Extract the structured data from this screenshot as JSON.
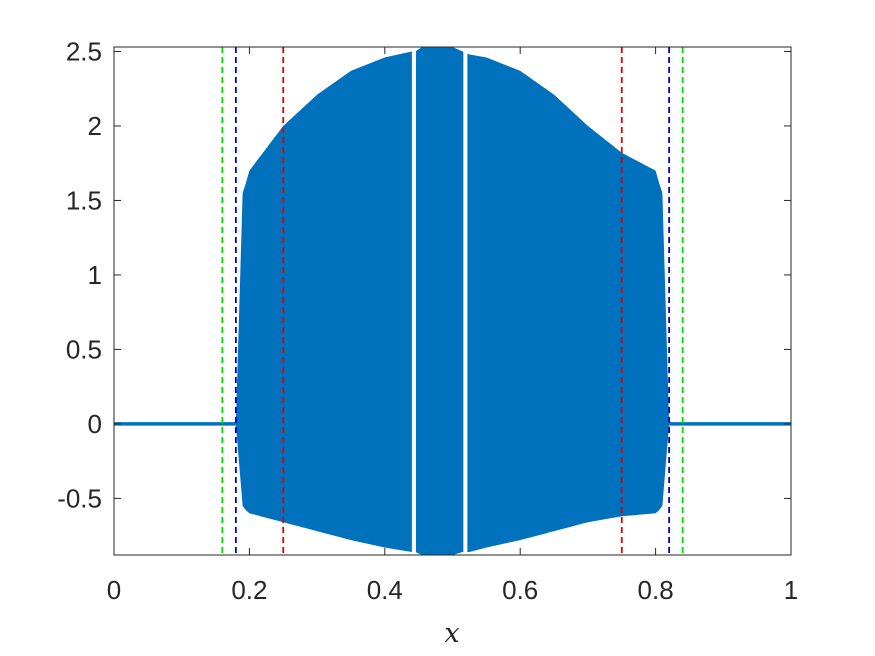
{
  "chart_data": {
    "type": "area",
    "title": "",
    "xlabel": "x",
    "ylabel": "",
    "xlim": [
      0,
      1
    ],
    "ylim": [
      -0.88,
      2.53
    ],
    "grid": false,
    "legend": "none",
    "x_ticks": [
      "0",
      "0.2",
      "0.4",
      "0.6",
      "0.8",
      "1"
    ],
    "x_tick_values": [
      0,
      0.2,
      0.4,
      0.6,
      0.8,
      1
    ],
    "y_ticks": [
      "-0.5",
      "0",
      "0.5",
      "1",
      "1.5",
      "2",
      "2.5"
    ],
    "y_tick_values": [
      -0.5,
      0,
      0.5,
      1,
      1.5,
      2,
      2.5
    ],
    "series": [
      {
        "color": "#0072BD",
        "baseline_left": {
          "x": [
            0,
            0.18
          ],
          "y": 0
        },
        "baseline_right": {
          "x": [
            0.82,
            1
          ],
          "y": 0
        },
        "envelope_x": [
          0.18,
          0.19,
          0.195,
          0.2,
          0.25,
          0.3,
          0.35,
          0.4,
          0.44,
          0.445,
          0.455,
          0.5,
          0.515,
          0.525,
          0.55,
          0.6,
          0.65,
          0.7,
          0.75,
          0.8,
          0.805,
          0.81,
          0.82
        ],
        "envelope_upper": [
          0.0,
          1.55,
          1.62,
          1.7,
          2.0,
          2.21,
          2.37,
          2.46,
          2.5,
          2.5,
          2.53,
          2.53,
          2.5,
          2.48,
          2.46,
          2.37,
          2.21,
          2.0,
          1.82,
          1.7,
          1.62,
          1.55,
          0.0
        ],
        "envelope_lower": [
          0.0,
          -0.55,
          -0.58,
          -0.6,
          -0.66,
          -0.72,
          -0.78,
          -0.83,
          -0.86,
          -0.86,
          -0.88,
          -0.88,
          -0.86,
          -0.86,
          -0.83,
          -0.78,
          -0.72,
          -0.66,
          -0.62,
          -0.6,
          -0.58,
          -0.55,
          0.0
        ],
        "gaps": [
          [
            0.44,
            0.446
          ],
          [
            0.516,
            0.522
          ]
        ]
      }
    ],
    "vlines": [
      {
        "x": 0.16,
        "color": "#00dd00",
        "style": "dashed"
      },
      {
        "x": 0.18,
        "color": "#0000cc",
        "style": "dashed"
      },
      {
        "x": 0.25,
        "color": "#dd0000",
        "style": "dashed"
      },
      {
        "x": 0.75,
        "color": "#dd0000",
        "style": "dashed"
      },
      {
        "x": 0.82,
        "color": "#0000cc",
        "style": "dashed"
      },
      {
        "x": 0.84,
        "color": "#00dd00",
        "style": "dashed"
      }
    ]
  }
}
